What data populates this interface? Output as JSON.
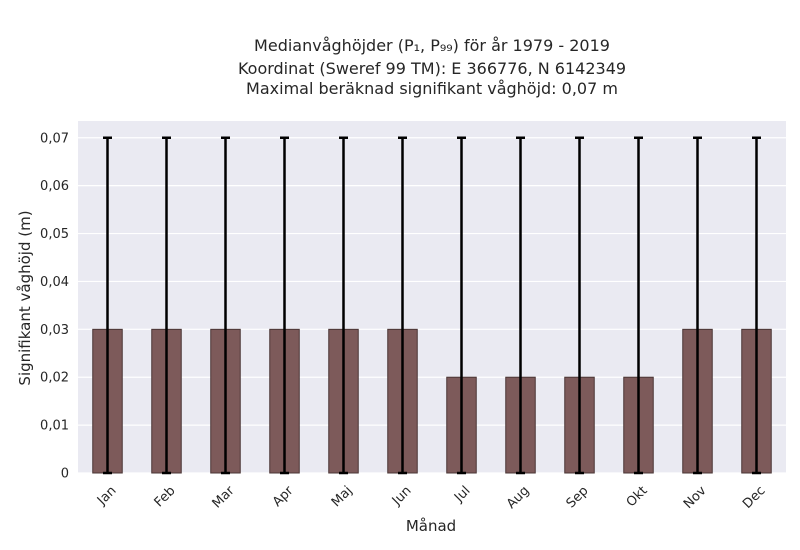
{
  "chart_data": {
    "type": "bar",
    "title_lines": [
      "Medianvåghöjder (P₁, P₉₉) för år 1979 - 2019",
      "Koordinat (Sweref 99 TM): E 366776, N 6142349",
      "Maximal beräknad signifikant våghöjd: 0,07 m"
    ],
    "xlabel": "Månad",
    "ylabel": "Signifikant våghöjd (m)",
    "categories": [
      "Jan",
      "Feb",
      "Mar",
      "Apr",
      "Maj",
      "Jun",
      "Jul",
      "Aug",
      "Sep",
      "Okt",
      "Nov",
      "Dec"
    ],
    "values": [
      0.03,
      0.03,
      0.03,
      0.03,
      0.03,
      0.03,
      0.02,
      0.02,
      0.02,
      0.02,
      0.03,
      0.03
    ],
    "error_low": [
      0,
      0,
      0,
      0,
      0,
      0,
      0,
      0,
      0,
      0,
      0,
      0
    ],
    "error_high": [
      0.07,
      0.07,
      0.07,
      0.07,
      0.07,
      0.07,
      0.07,
      0.07,
      0.07,
      0.07,
      0.07,
      0.07
    ],
    "ylim": [
      0,
      0.0735
    ],
    "yticks": [
      0,
      0.01,
      0.02,
      0.03,
      0.04,
      0.05,
      0.06,
      0.07
    ],
    "ytick_labels": [
      "0",
      "0,01",
      "0,02",
      "0,03",
      "0,04",
      "0,05",
      "0,06",
      "0,07"
    ],
    "grid": true,
    "colors": {
      "bar": "#7d5a5a",
      "bar_edge": "#4a3535",
      "error": "#000000",
      "background": "#eaeaf2",
      "grid": "#ffffff"
    }
  }
}
